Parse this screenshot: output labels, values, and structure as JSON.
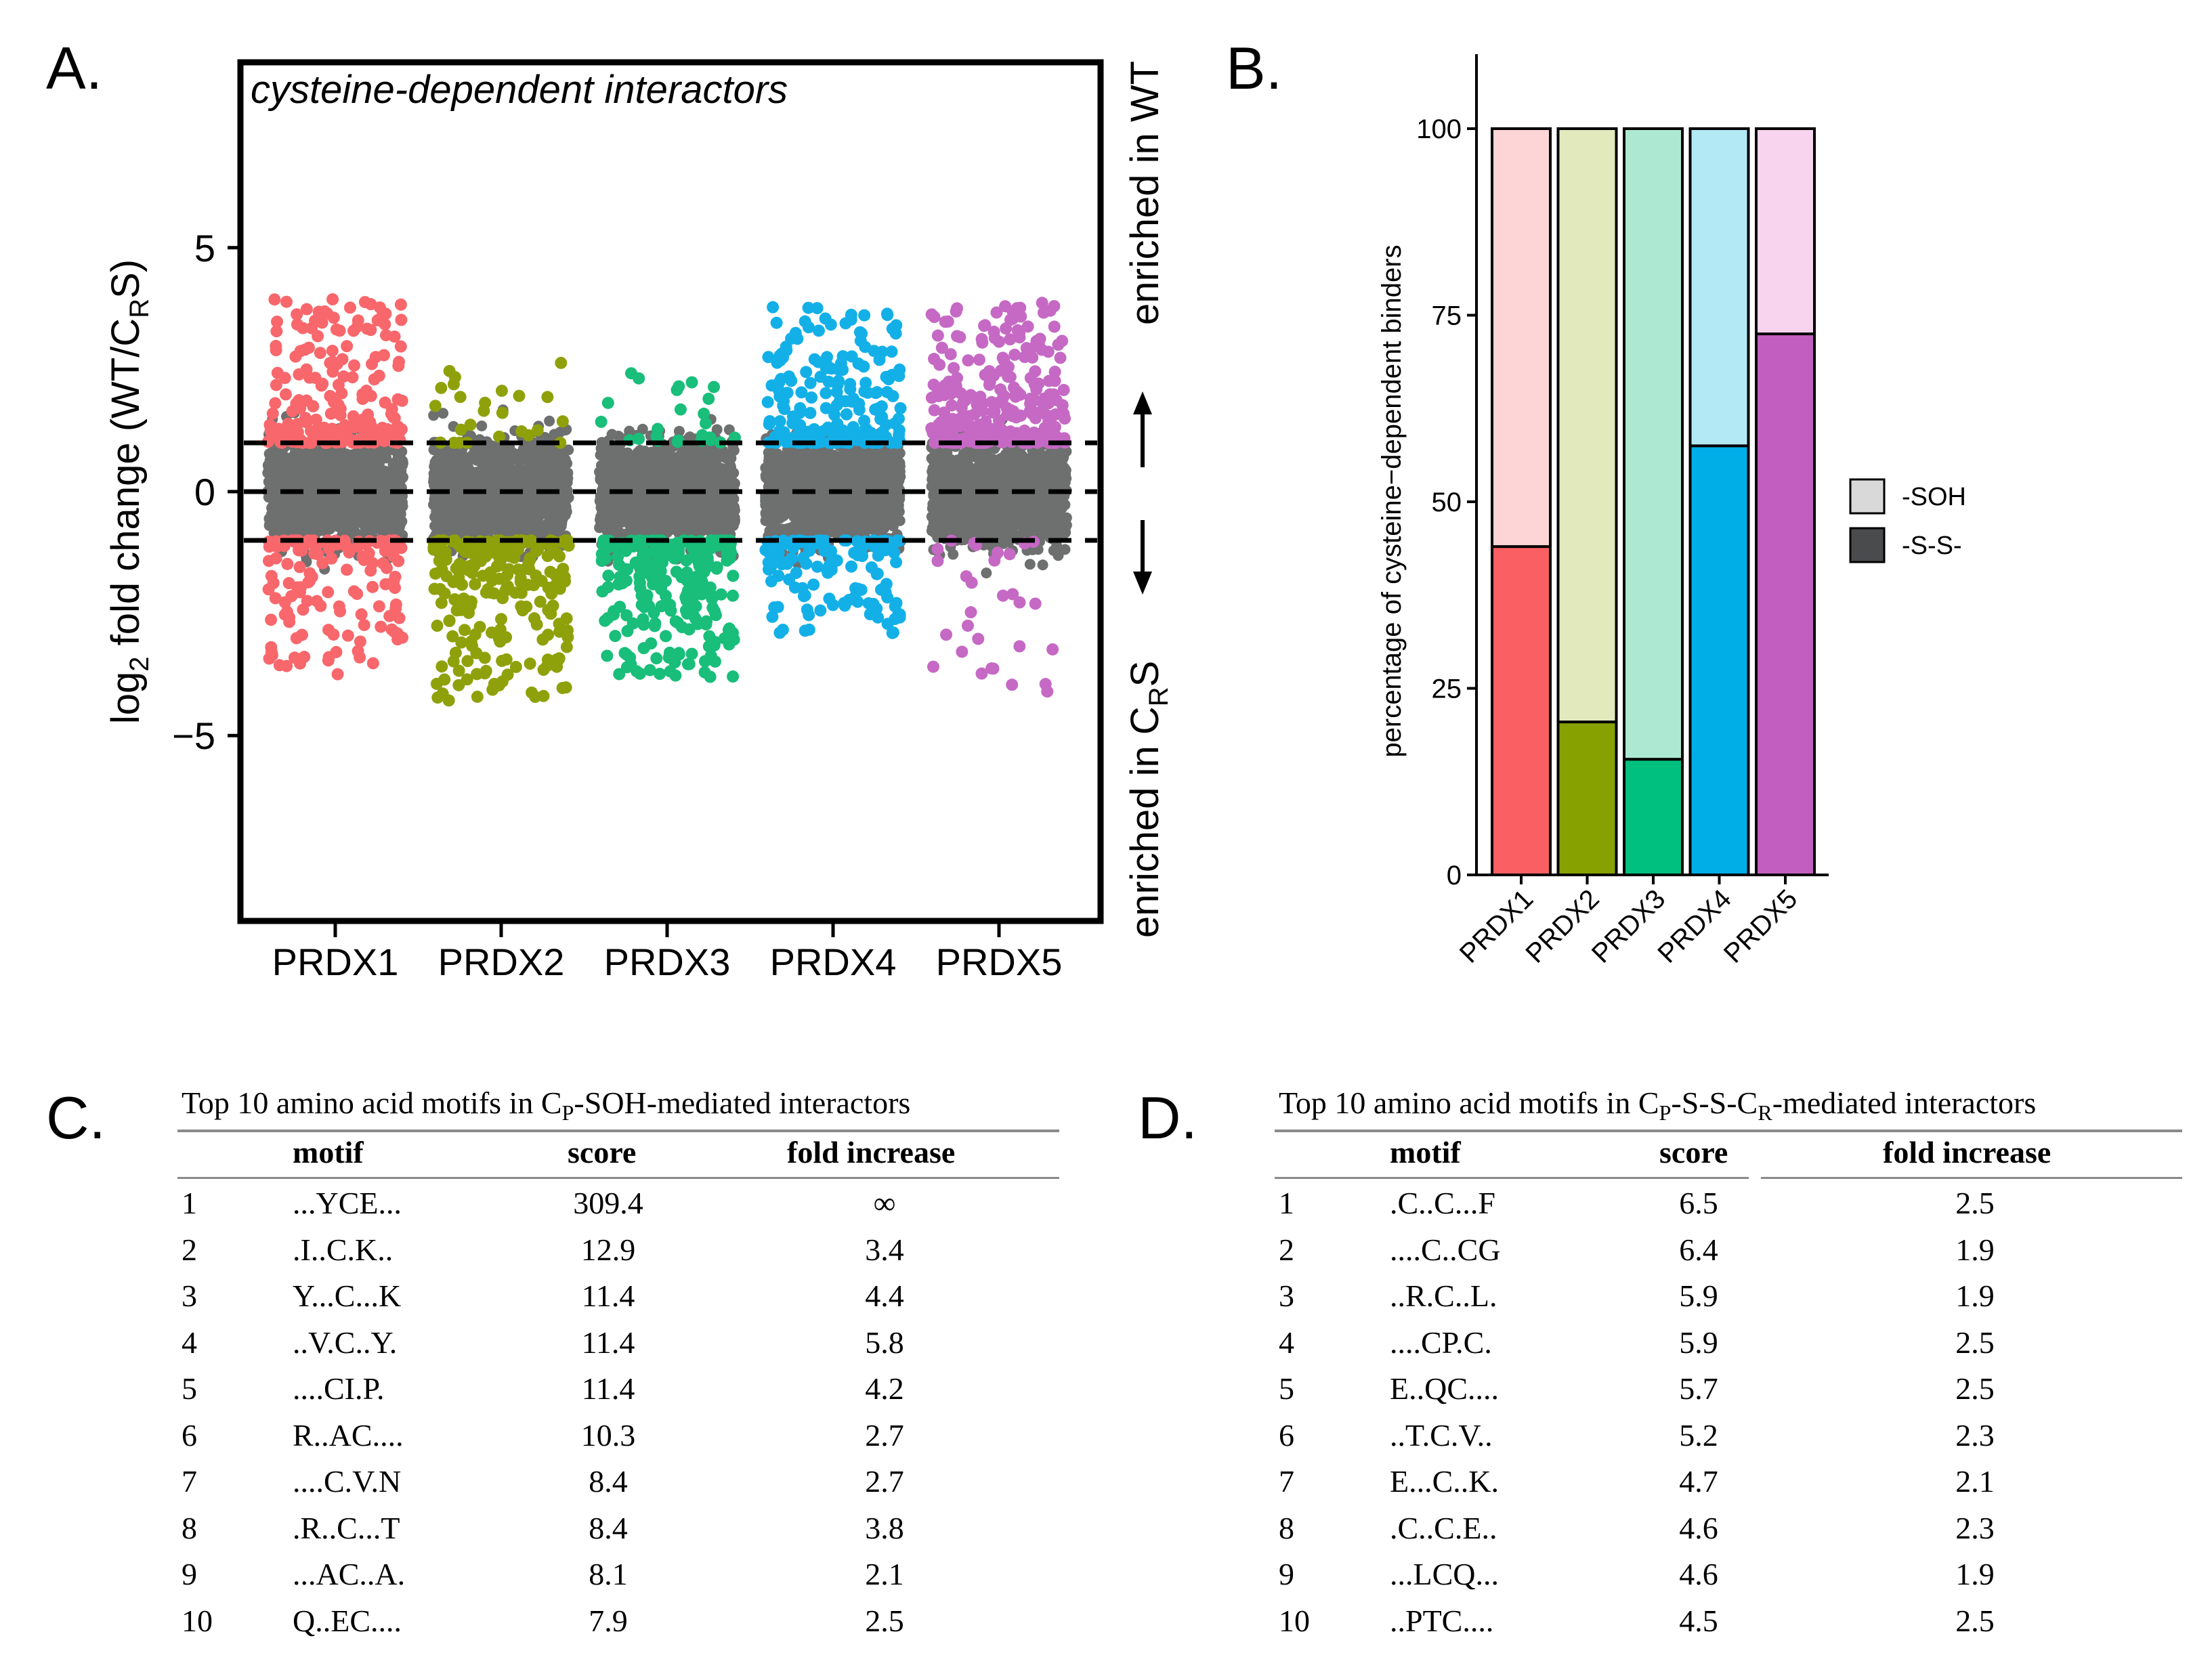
{
  "panel_labels": [
    "A.",
    "B.",
    "C.",
    "D."
  ],
  "chart_data": [
    {
      "type": "scatter",
      "panel": "A.",
      "title": "cysteine-dependent interactors",
      "ylabel_prefix": "log",
      "ylabel_sub": "2",
      "ylabel_rest": " fold change (WT/C",
      "ylabel_sub2": "R",
      "ylabel_end": "S)",
      "categories": [
        "PRDX1",
        "PRDX2",
        "PRDX3",
        "PRDX4",
        "PRDX5"
      ],
      "ylim": [
        -8.8,
        8.8
      ],
      "yticks": [
        -5,
        0,
        5
      ],
      "ytick_labels": [
        "−5",
        "0",
        "5"
      ],
      "threshold_lines": [
        -1,
        0,
        1
      ],
      "right_label_top": "enriched in WT",
      "right_label_bottom_prefix": "enriched in C",
      "right_label_bottom_sub": "R",
      "right_label_bottom_end": "S",
      "series": [
        {
          "name": "PRDX1",
          "color": "#f8676b",
          "spread_up": 4.0,
          "spread_down": -3.8,
          "bias": "both"
        },
        {
          "name": "PRDX2",
          "color": "#8fa10a",
          "spread_up": 3.0,
          "spread_down": -4.3,
          "bias": "down"
        },
        {
          "name": "PRDX3",
          "color": "#18be7a",
          "spread_up": 2.5,
          "spread_down": -3.8,
          "bias": "down"
        },
        {
          "name": "PRDX4",
          "color": "#13b0e8",
          "spread_up": 3.8,
          "spread_down": -2.9,
          "bias": "both"
        },
        {
          "name": "PRDX5",
          "color": "#c569c4",
          "spread_up": 3.9,
          "spread_down": -4.1,
          "bias": "up"
        }
      ],
      "background_color": "#6e6f6f"
    },
    {
      "type": "bar",
      "panel": "B.",
      "stacked": true,
      "ylabel": "percentage of cysteine−dependent binders",
      "categories": [
        "PRDX1",
        "PRDX2",
        "PRDX3",
        "PRDX4",
        "PRDX5"
      ],
      "ylim": [
        0,
        100
      ],
      "yticks": [
        0,
        25,
        50,
        75,
        100
      ],
      "series": [
        {
          "name": "-S-S-",
          "values": [
            44,
            20.5,
            15.5,
            57.5,
            72.5
          ],
          "colors": [
            "#fa5f63",
            "#86a100",
            "#00c07f",
            "#00aee7",
            "#c15ebf"
          ]
        },
        {
          "name": "-SOH",
          "values": [
            56,
            79.5,
            84.5,
            42.5,
            27.5
          ],
          "colors": [
            "#fdd5d6",
            "#e2eabd",
            "#ade9d2",
            "#b3e9f5",
            "#f8d4ee"
          ]
        }
      ],
      "legend": [
        {
          "label": "-SOH",
          "color": "#d9d9d9"
        },
        {
          "label": "-S-S-",
          "color": "#4a4b4d"
        }
      ]
    }
  ],
  "table_c": {
    "title_pre": "Top 10 amino acid motifs in C",
    "title_sub": "P",
    "title_post": "-SOH-mediated interactors",
    "headers": [
      "motif",
      "score",
      "fold increase"
    ],
    "rows": [
      {
        "rank": "1",
        "motif": "...YCE...",
        "score": "309.4",
        "fold": "∞"
      },
      {
        "rank": "2",
        "motif": ".I..C.K..",
        "score": "12.9",
        "fold": "3.4"
      },
      {
        "rank": "3",
        "motif": "Y...C...K",
        "score": "11.4",
        "fold": "4.4"
      },
      {
        "rank": "4",
        "motif": "..V.C..Y.",
        "score": "11.4",
        "fold": "5.8"
      },
      {
        "rank": "5",
        "motif": "....CI.P.",
        "score": "11.4",
        "fold": "4.2"
      },
      {
        "rank": "6",
        "motif": "R..AC....",
        "score": "10.3",
        "fold": "2.7"
      },
      {
        "rank": "7",
        "motif": "....C.V.N",
        "score": "8.4",
        "fold": "2.7"
      },
      {
        "rank": "8",
        "motif": ".R..C...T",
        "score": "8.4",
        "fold": "3.8"
      },
      {
        "rank": "9",
        "motif": "...AC..A.",
        "score": "8.1",
        "fold": "2.1"
      },
      {
        "rank": "10",
        "motif": "Q..EC....",
        "score": "7.9",
        "fold": "2.5"
      }
    ]
  },
  "table_d": {
    "title_pre": "Top 10 amino acid motifs in C",
    "title_sub": "P",
    "title_mid": "-S-S-C",
    "title_sub2": "R",
    "title_post": "-mediated interactors",
    "headers": [
      "motif",
      "score",
      "fold increase"
    ],
    "rows": [
      {
        "rank": "1",
        "motif": ".C..C...F",
        "score": "6.5",
        "fold": "2.5"
      },
      {
        "rank": "2",
        "motif": "....C..CG",
        "score": "6.4",
        "fold": "1.9"
      },
      {
        "rank": "3",
        "motif": "..R.C..L.",
        "score": "5.9",
        "fold": "1.9"
      },
      {
        "rank": "4",
        "motif": "....CP.C.",
        "score": "5.9",
        "fold": "2.5"
      },
      {
        "rank": "5",
        "motif": "E..QC....",
        "score": "5.7",
        "fold": "2.5"
      },
      {
        "rank": "6",
        "motif": "..T.C.V..",
        "score": "5.2",
        "fold": "2.3"
      },
      {
        "rank": "7",
        "motif": "E...C..K.",
        "score": "4.7",
        "fold": "2.1"
      },
      {
        "rank": "8",
        "motif": ".C..C.E..",
        "score": "4.6",
        "fold": "2.3"
      },
      {
        "rank": "9",
        "motif": "...LCQ...",
        "score": "4.6",
        "fold": "1.9"
      },
      {
        "rank": "10",
        "motif": "..PTC....",
        "score": "4.5",
        "fold": "2.5"
      }
    ]
  }
}
